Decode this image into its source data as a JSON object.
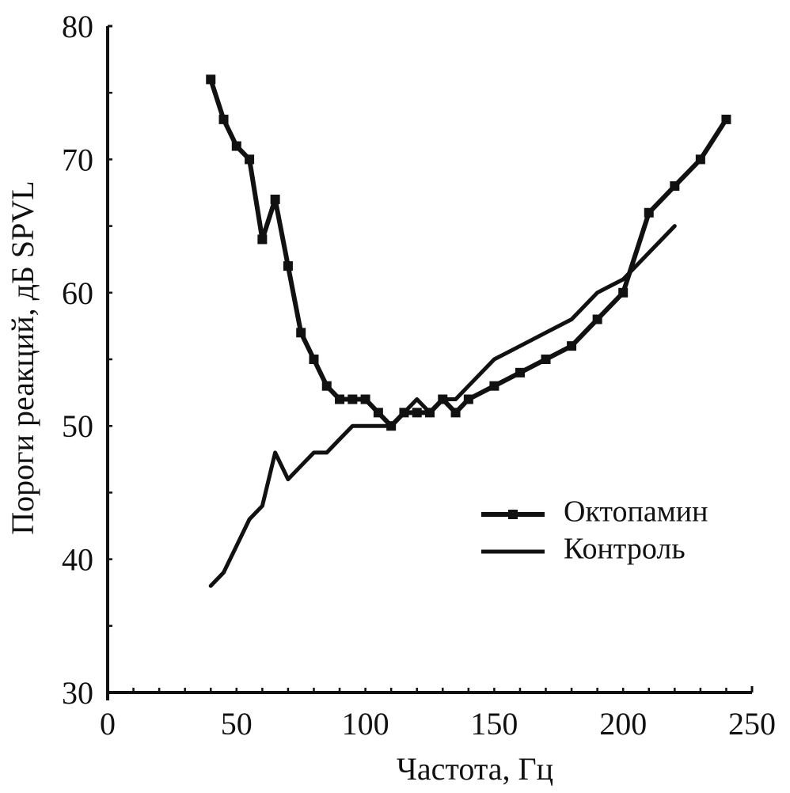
{
  "chart_data": {
    "type": "line",
    "title": "",
    "xlabel": "Частота,  Гц",
    "ylabel": "Пороги реакций, дБ SPVL",
    "xlim": [
      0,
      250
    ],
    "ylim": [
      30,
      80
    ],
    "xticks": [
      0,
      50,
      100,
      150,
      200,
      250
    ],
    "yticks": [
      30,
      40,
      50,
      60,
      70,
      80
    ],
    "grid": false,
    "legend_position": "center-right",
    "series": [
      {
        "name": "Октопамин",
        "marker": "square",
        "color": "#111111",
        "x": [
          40,
          45,
          50,
          55,
          60,
          65,
          70,
          75,
          80,
          85,
          90,
          95,
          100,
          105,
          110,
          115,
          120,
          125,
          130,
          135,
          140,
          150,
          160,
          170,
          180,
          190,
          200,
          210,
          220,
          230,
          240
        ],
        "y": [
          76,
          73,
          71,
          70,
          64,
          67,
          62,
          57,
          55,
          53,
          52,
          52,
          52,
          51,
          50,
          51,
          51,
          51,
          52,
          51,
          52,
          53,
          54,
          55,
          56,
          58,
          60,
          66,
          68,
          70,
          73
        ]
      },
      {
        "name": "Контроль",
        "marker": "none",
        "color": "#111111",
        "x": [
          40,
          45,
          50,
          55,
          60,
          65,
          70,
          75,
          80,
          85,
          90,
          95,
          100,
          110,
          115,
          120,
          125,
          130,
          135,
          140,
          150,
          160,
          170,
          180,
          190,
          200,
          210,
          220
        ],
        "y": [
          38,
          39,
          41,
          43,
          44,
          48,
          46,
          47,
          48,
          48,
          49,
          50,
          50,
          50,
          51,
          52,
          51,
          52,
          52,
          53,
          55,
          56,
          57,
          58,
          60,
          61,
          63,
          65
        ]
      }
    ]
  }
}
